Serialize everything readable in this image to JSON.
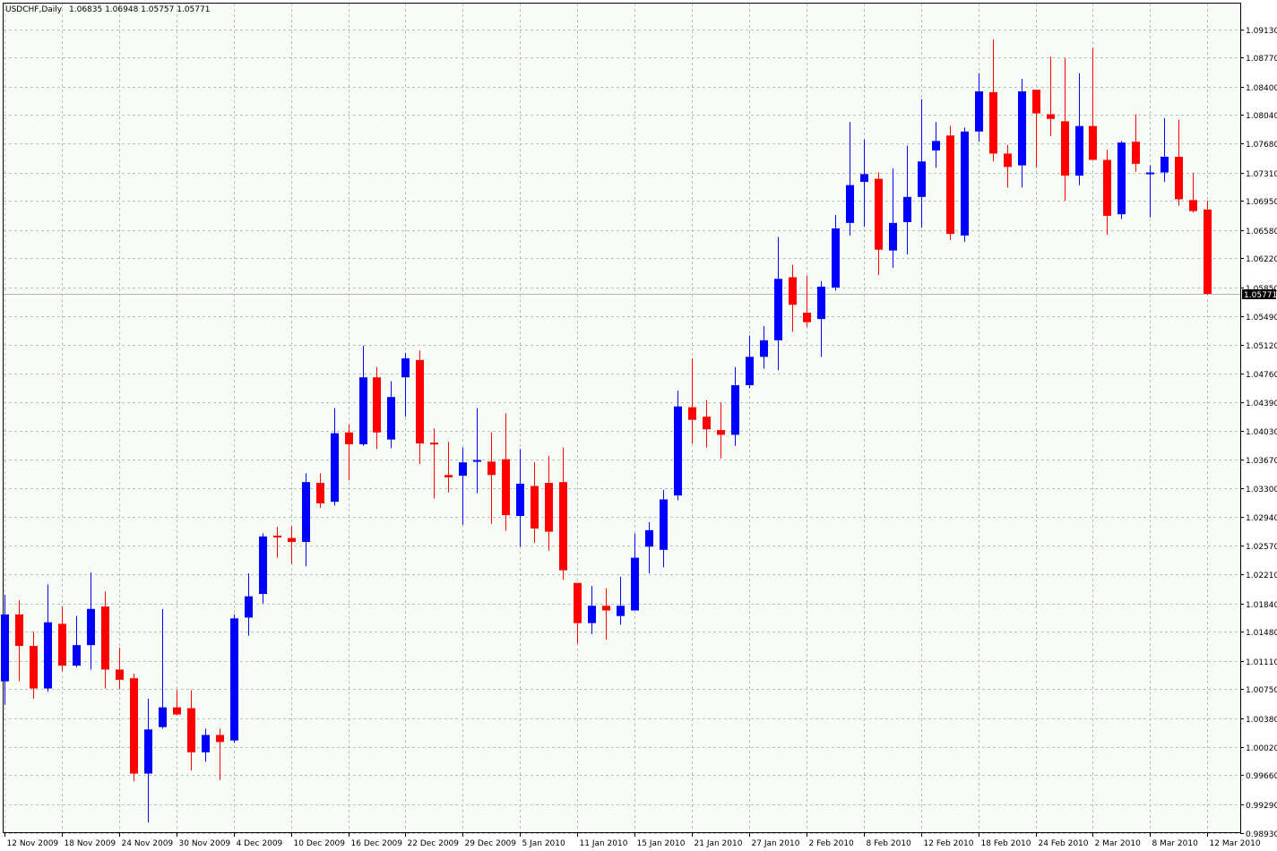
{
  "header": {
    "symbol": "USDCHF,Daily",
    "ohlc": "1.06835 1.06948 1.05757 1.05771"
  },
  "current_price": {
    "label": "1.05771",
    "value": 1.05771
  },
  "colors": {
    "bull": "#0000ff",
    "bear": "#ff0000",
    "background": "#f7fcf7",
    "grid": "#b9c2b9",
    "axis": "#000000",
    "price_line": "#b4b4b4"
  },
  "chart_data": {
    "type": "candlestick",
    "title": "USDCHF,Daily",
    "ylim": [
      0.9876,
      1.095
    ],
    "grid": true,
    "y_axis_side": "right",
    "y_ticks": [
      {
        "label": "1.09130",
        "value": 1.0913
      },
      {
        "label": "1.08770",
        "value": 1.0877
      },
      {
        "label": "1.08400",
        "value": 1.084
      },
      {
        "label": "1.08040",
        "value": 1.0804
      },
      {
        "label": "1.07680",
        "value": 1.0768
      },
      {
        "label": "1.07310",
        "value": 1.0731
      },
      {
        "label": "1.06950",
        "value": 1.0695
      },
      {
        "label": "1.06580",
        "value": 1.0658
      },
      {
        "label": "1.06220",
        "value": 1.0622
      },
      {
        "label": "1.05850",
        "value": 1.0585
      },
      {
        "label": "1.05490",
        "value": 1.0549
      },
      {
        "label": "1.05120",
        "value": 1.0512
      },
      {
        "label": "1.04760",
        "value": 1.0476
      },
      {
        "label": "1.04390",
        "value": 1.0439
      },
      {
        "label": "1.04030",
        "value": 1.0403
      },
      {
        "label": "1.03670",
        "value": 1.0367
      },
      {
        "label": "1.03300",
        "value": 1.033
      },
      {
        "label": "1.02940",
        "value": 1.0294
      },
      {
        "label": "1.02570",
        "value": 1.0257
      },
      {
        "label": "1.02210",
        "value": 1.0221
      },
      {
        "label": "1.01840",
        "value": 1.0184
      },
      {
        "label": "1.01480",
        "value": 1.0148
      },
      {
        "label": "1.01110",
        "value": 1.0111
      },
      {
        "label": "1.00750",
        "value": 1.0075
      },
      {
        "label": "1.00380",
        "value": 1.0038
      },
      {
        "label": "1.00020",
        "value": 1.0002
      },
      {
        "label": "0.99660",
        "value": 0.9966
      },
      {
        "label": "0.99290",
        "value": 0.9929
      },
      {
        "label": "0.98930",
        "value": 0.9893
      }
    ],
    "x_ticks": [
      {
        "label": "12 Nov 2009",
        "index": 0
      },
      {
        "label": "18 Nov 2009",
        "index": 4
      },
      {
        "label": "24 Nov 2009",
        "index": 8
      },
      {
        "label": "30 Nov 2009",
        "index": 12
      },
      {
        "label": "4 Dec 2009",
        "index": 16
      },
      {
        "label": "10 Dec 2009",
        "index": 20
      },
      {
        "label": "16 Dec 2009",
        "index": 24
      },
      {
        "label": "22 Dec 2009",
        "index": 28
      },
      {
        "label": "29 Dec 2009",
        "index": 32
      },
      {
        "label": "5 Jan 2010",
        "index": 36
      },
      {
        "label": "11 Jan 2010",
        "index": 40
      },
      {
        "label": "15 Jan 2010",
        "index": 44
      },
      {
        "label": "21 Jan 2010",
        "index": 48
      },
      {
        "label": "27 Jan 2010",
        "index": 52
      },
      {
        "label": "2 Feb 2010",
        "index": 56
      },
      {
        "label": "8 Feb 2010",
        "index": 60
      },
      {
        "label": "12 Feb 2010",
        "index": 64
      },
      {
        "label": "18 Feb 2010",
        "index": 68
      },
      {
        "label": "24 Feb 2010",
        "index": 72
      },
      {
        "label": "2 Mar 2010",
        "index": 76
      },
      {
        "label": "8 Mar 2010",
        "index": 80
      },
      {
        "label": "12 Mar 2010",
        "index": 84
      }
    ],
    "candles": [
      {
        "o": 1.0085,
        "h": 1.0195,
        "l": 1.0055,
        "c": 1.017
      },
      {
        "o": 1.017,
        "h": 1.0188,
        "l": 1.0085,
        "c": 1.013
      },
      {
        "o": 1.013,
        "h": 1.0148,
        "l": 1.0063,
        "c": 1.0076
      },
      {
        "o": 1.0076,
        "h": 1.0208,
        "l": 1.0072,
        "c": 1.016
      },
      {
        "o": 1.0158,
        "h": 1.018,
        "l": 1.0098,
        "c": 1.0105
      },
      {
        "o": 1.0105,
        "h": 1.0168,
        "l": 1.0103,
        "c": 1.0131
      },
      {
        "o": 1.0131,
        "h": 1.0223,
        "l": 1.01,
        "c": 1.0177
      },
      {
        "o": 1.018,
        "h": 1.0199,
        "l": 1.0076,
        "c": 1.01
      },
      {
        "o": 1.01,
        "h": 1.0128,
        "l": 1.0075,
        "c": 1.0087
      },
      {
        "o": 1.0089,
        "h": 1.0095,
        "l": 0.9958,
        "c": 0.9968
      },
      {
        "o": 0.9968,
        "h": 1.0063,
        "l": 0.9906,
        "c": 1.0024
      },
      {
        "o": 1.0027,
        "h": 1.0177,
        "l": 1.0025,
        "c": 1.0052
      },
      {
        "o": 1.0052,
        "h": 1.0074,
        "l": 1.0042,
        "c": 1.0043
      },
      {
        "o": 1.0051,
        "h": 1.0074,
        "l": 0.9972,
        "c": 0.9995
      },
      {
        "o": 0.9995,
        "h": 1.0025,
        "l": 0.9983,
        "c": 1.0017
      },
      {
        "o": 1.0017,
        "h": 1.0025,
        "l": 0.996,
        "c": 1.0008
      },
      {
        "o": 1.001,
        "h": 1.017,
        "l": 1.0007,
        "c": 1.0165
      },
      {
        "o": 1.0166,
        "h": 1.0222,
        "l": 1.0143,
        "c": 1.0193
      },
      {
        "o": 1.0196,
        "h": 1.0273,
        "l": 1.0184,
        "c": 1.0269
      },
      {
        "o": 1.027,
        "h": 1.0281,
        "l": 1.0242,
        "c": 1.0268
      },
      {
        "o": 1.0267,
        "h": 1.0282,
        "l": 1.0234,
        "c": 1.0262
      },
      {
        "o": 1.0262,
        "h": 1.0349,
        "l": 1.0231,
        "c": 1.0338
      },
      {
        "o": 1.0337,
        "h": 1.0349,
        "l": 1.0305,
        "c": 1.0311
      },
      {
        "o": 1.0313,
        "h": 1.0432,
        "l": 1.0308,
        "c": 1.04
      },
      {
        "o": 1.0401,
        "h": 1.0411,
        "l": 1.034,
        "c": 1.0386
      },
      {
        "o": 1.0386,
        "h": 1.0511,
        "l": 1.0384,
        "c": 1.0471
      },
      {
        "o": 1.0471,
        "h": 1.0484,
        "l": 1.038,
        "c": 1.0401
      },
      {
        "o": 1.0392,
        "h": 1.0466,
        "l": 1.0381,
        "c": 1.0446
      },
      {
        "o": 1.0471,
        "h": 1.0502,
        "l": 1.0421,
        "c": 1.0495
      },
      {
        "o": 1.0493,
        "h": 1.0505,
        "l": 1.0361,
        "c": 1.0387
      },
      {
        "o": 1.0388,
        "h": 1.0406,
        "l": 1.0317,
        "c": 1.0386
      },
      {
        "o": 1.0347,
        "h": 1.0389,
        "l": 1.0325,
        "c": 1.0344
      },
      {
        "o": 1.0346,
        "h": 1.0382,
        "l": 1.0284,
        "c": 1.0363
      },
      {
        "o": 1.0364,
        "h": 1.0432,
        "l": 1.0324,
        "c": 1.0366
      },
      {
        "o": 1.0364,
        "h": 1.0401,
        "l": 1.0285,
        "c": 1.0347
      },
      {
        "o": 1.0367,
        "h": 1.0425,
        "l": 1.0276,
        "c": 1.0296
      },
      {
        "o": 1.0295,
        "h": 1.038,
        "l": 1.0256,
        "c": 1.0336
      },
      {
        "o": 1.0333,
        "h": 1.0363,
        "l": 1.0261,
        "c": 1.0279
      },
      {
        "o": 1.0337,
        "h": 1.0371,
        "l": 1.0251,
        "c": 1.0275
      },
      {
        "o": 1.0338,
        "h": 1.0382,
        "l": 1.0214,
        "c": 1.0226
      },
      {
        "o": 1.021,
        "h": 1.0209,
        "l": 1.0133,
        "c": 1.0159
      },
      {
        "o": 1.0159,
        "h": 1.0206,
        "l": 1.0145,
        "c": 1.0181
      },
      {
        "o": 1.0181,
        "h": 1.0203,
        "l": 1.0138,
        "c": 1.0175
      },
      {
        "o": 1.0168,
        "h": 1.0218,
        "l": 1.0157,
        "c": 1.0181
      },
      {
        "o": 1.0175,
        "h": 1.0273,
        "l": 1.0175,
        "c": 1.0242
      },
      {
        "o": 1.0256,
        "h": 1.0287,
        "l": 1.0222,
        "c": 1.0277
      },
      {
        "o": 1.0252,
        "h": 1.0328,
        "l": 1.023,
        "c": 1.0316
      },
      {
        "o": 1.0321,
        "h": 1.0454,
        "l": 1.0315,
        "c": 1.0434
      },
      {
        "o": 1.0433,
        "h": 1.0495,
        "l": 1.0387,
        "c": 1.0417
      },
      {
        "o": 1.0421,
        "h": 1.0442,
        "l": 1.0382,
        "c": 1.0405
      },
      {
        "o": 1.0404,
        "h": 1.0439,
        "l": 1.0368,
        "c": 1.0398
      },
      {
        "o": 1.0398,
        "h": 1.0484,
        "l": 1.0384,
        "c": 1.0461
      },
      {
        "o": 1.0461,
        "h": 1.0524,
        "l": 1.0457,
        "c": 1.0497
      },
      {
        "o": 1.0497,
        "h": 1.0536,
        "l": 1.0482,
        "c": 1.0518
      },
      {
        "o": 1.0518,
        "h": 1.0649,
        "l": 1.048,
        "c": 1.0596
      },
      {
        "o": 1.0598,
        "h": 1.0614,
        "l": 1.0529,
        "c": 1.0563
      },
      {
        "o": 1.0553,
        "h": 1.06,
        "l": 1.0535,
        "c": 1.0541
      },
      {
        "o": 1.0545,
        "h": 1.0593,
        "l": 1.0497,
        "c": 1.0586
      },
      {
        "o": 1.0585,
        "h": 1.0677,
        "l": 1.0581,
        "c": 1.066
      },
      {
        "o": 1.0667,
        "h": 1.0795,
        "l": 1.0651,
        "c": 1.0715
      },
      {
        "o": 1.0719,
        "h": 1.0773,
        "l": 1.0662,
        "c": 1.0729
      },
      {
        "o": 1.0723,
        "h": 1.0731,
        "l": 1.0601,
        "c": 1.0633
      },
      {
        "o": 1.0632,
        "h": 1.0736,
        "l": 1.061,
        "c": 1.0667
      },
      {
        "o": 1.0668,
        "h": 1.0765,
        "l": 1.0627,
        "c": 1.07
      },
      {
        "o": 1.07,
        "h": 1.0824,
        "l": 1.0661,
        "c": 1.0745
      },
      {
        "o": 1.0759,
        "h": 1.0795,
        "l": 1.0737,
        "c": 1.0771
      },
      {
        "o": 1.0778,
        "h": 1.079,
        "l": 1.0645,
        "c": 1.0653
      },
      {
        "o": 1.0651,
        "h": 1.0788,
        "l": 1.0643,
        "c": 1.0783
      },
      {
        "o": 1.0783,
        "h": 1.0857,
        "l": 1.077,
        "c": 1.0834
      },
      {
        "o": 1.0833,
        "h": 1.09,
        "l": 1.0745,
        "c": 1.0755
      },
      {
        "o": 1.0755,
        "h": 1.0766,
        "l": 1.0712,
        "c": 1.0738
      },
      {
        "o": 1.074,
        "h": 1.085,
        "l": 1.0712,
        "c": 1.0834
      },
      {
        "o": 1.0836,
        "h": 1.0836,
        "l": 1.0737,
        "c": 1.0806
      },
      {
        "o": 1.0805,
        "h": 1.0878,
        "l": 1.0777,
        "c": 1.0799
      },
      {
        "o": 1.0796,
        "h": 1.0876,
        "l": 1.0695,
        "c": 1.0727
      },
      {
        "o": 1.0727,
        "h": 1.0857,
        "l": 1.0715,
        "c": 1.079
      },
      {
        "o": 1.079,
        "h": 1.0889,
        "l": 1.0747,
        "c": 1.0747
      },
      {
        "o": 1.0747,
        "h": 1.076,
        "l": 1.0652,
        "c": 1.0676
      },
      {
        "o": 1.0678,
        "h": 1.0771,
        "l": 1.0672,
        "c": 1.0769
      },
      {
        "o": 1.077,
        "h": 1.0805,
        "l": 1.0732,
        "c": 1.0742
      },
      {
        "o": 1.0731,
        "h": 1.074,
        "l": 1.0674,
        "c": 1.0731
      },
      {
        "o": 1.0731,
        "h": 1.08,
        "l": 1.0719,
        "c": 1.0751
      },
      {
        "o": 1.0751,
        "h": 1.0798,
        "l": 1.0689,
        "c": 1.0697
      },
      {
        "o": 1.0696,
        "h": 1.073,
        "l": 1.068,
        "c": 1.0682
      },
      {
        "o": 1.0684,
        "h": 1.0695,
        "l": 1.0576,
        "c": 1.0577
      }
    ]
  }
}
